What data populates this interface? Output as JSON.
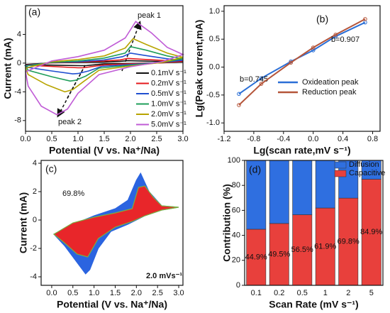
{
  "chart_data": [
    {
      "type": "line",
      "panel_label": "(a)",
      "x_label": "Potential (V vs. Na⁺/Na)",
      "y_label": "Current (mA)",
      "xlim": [
        0,
        3
      ],
      "ylim": [
        -9.5,
        8
      ],
      "xticks": [
        {
          "value": 0,
          "label": "0.0"
        },
        {
          "value": 0.5,
          "label": "0.5"
        },
        {
          "value": 1,
          "label": "1.0"
        },
        {
          "value": 1.5,
          "label": "1.5"
        },
        {
          "value": 2,
          "label": "2.0"
        },
        {
          "value": 2.5,
          "label": "2.5"
        },
        {
          "value": 3,
          "label": "3.0"
        }
      ],
      "yticks": [
        -8,
        -4,
        0,
        4
      ],
      "annotations": [
        "peak 1",
        "peak 2"
      ],
      "series": [
        {
          "name": "0.1mV s⁻¹",
          "color": "#111111",
          "x": [
            0,
            0.5,
            1.0,
            1.5,
            1.8,
            1.95,
            2.2,
            2.7,
            3.0,
            2.6,
            2.0,
            1.5,
            1.3,
            1.15,
            1.05,
            0.6,
            0.05,
            0
          ],
          "y": [
            -0.2,
            0.05,
            0.1,
            0.15,
            0.25,
            0.35,
            0.3,
            0.2,
            0.15,
            0.05,
            -0.05,
            -0.1,
            -0.25,
            -0.35,
            -0.35,
            -0.3,
            -0.2,
            -0.2
          ]
        },
        {
          "name": "0.2mV s⁻¹",
          "color": "#e41a1c",
          "x": [
            0,
            0.5,
            1.0,
            1.5,
            1.8,
            1.95,
            2.2,
            2.7,
            3.0,
            2.6,
            2.0,
            1.5,
            1.25,
            1.1,
            1.0,
            0.6,
            0.05,
            0
          ],
          "y": [
            -0.3,
            0.05,
            0.15,
            0.3,
            0.45,
            0.65,
            0.55,
            0.35,
            0.25,
            0.05,
            -0.1,
            -0.25,
            -0.5,
            -0.65,
            -0.65,
            -0.5,
            -0.3,
            -0.3
          ]
        },
        {
          "name": "0.5mV s⁻¹",
          "color": "#1f4fd0",
          "x": [
            0,
            0.5,
            1.0,
            1.5,
            1.85,
            2.0,
            2.25,
            2.7,
            3.0,
            2.6,
            2.0,
            1.45,
            1.2,
            1.0,
            0.9,
            0.5,
            0.05,
            0
          ],
          "y": [
            -0.35,
            0.1,
            0.2,
            0.45,
            0.9,
            1.4,
            1.1,
            0.6,
            0.4,
            0.1,
            -0.2,
            -0.45,
            -1.1,
            -1.45,
            -1.5,
            -1.1,
            -0.6,
            -0.35
          ]
        },
        {
          "name": "1.0mV s⁻¹",
          "color": "#1f9e5a",
          "x": [
            0,
            0.5,
            1.0,
            1.5,
            1.9,
            2.0,
            2.3,
            2.7,
            3.0,
            2.6,
            2.0,
            1.4,
            1.15,
            0.95,
            0.85,
            0.5,
            0.05,
            0
          ],
          "y": [
            -0.4,
            0.1,
            0.3,
            0.7,
            1.4,
            2.3,
            1.8,
            1.0,
            0.6,
            0.1,
            -0.3,
            -0.7,
            -1.8,
            -2.4,
            -2.5,
            -1.9,
            -1.0,
            -0.4
          ]
        },
        {
          "name": "2.0mV s⁻¹",
          "color": "#b8a400",
          "x": [
            0,
            0.5,
            1.0,
            1.5,
            1.9,
            2.05,
            2.3,
            2.7,
            3.0,
            2.6,
            2.0,
            1.4,
            1.1,
            0.9,
            0.75,
            0.4,
            0.05,
            0
          ],
          "y": [
            -0.7,
            0.2,
            0.5,
            1.0,
            2.1,
            3.4,
            2.6,
            1.4,
            0.8,
            0.1,
            -0.4,
            -1.0,
            -2.6,
            -3.7,
            -4.0,
            -3.0,
            -1.6,
            -0.7
          ]
        },
        {
          "name": "5.0mV s⁻¹",
          "color": "#c05cd6",
          "x": [
            0,
            0.5,
            1.0,
            1.5,
            1.9,
            2.1,
            2.4,
            2.7,
            3.0,
            2.6,
            2.0,
            1.4,
            1.0,
            0.8,
            0.6,
            0.3,
            0.05,
            0
          ],
          "y": [
            -1.2,
            0.3,
            0.9,
            1.8,
            3.5,
            5.8,
            4.2,
            2.2,
            1.2,
            0.2,
            -0.5,
            -1.6,
            -4.2,
            -6.4,
            -7.2,
            -6.0,
            -3.2,
            -1.2
          ]
        }
      ]
    },
    {
      "type": "scatter",
      "panel_label": "(b)",
      "x_label": "Lg(scan rate,mV s⁻¹)",
      "y_label": "Lg(Peak current,mA)",
      "xlim": [
        -1.2,
        0.9
      ],
      "ylim": [
        -1.15,
        1.1
      ],
      "xticks": [
        {
          "value": -1.2,
          "label": "-1.2"
        },
        {
          "value": -0.8,
          "label": "-0.8"
        },
        {
          "value": -0.4,
          "label": "-0.4"
        },
        {
          "value": 0,
          "label": "0.0"
        },
        {
          "value": 0.4,
          "label": "0.4"
        },
        {
          "value": 0.8,
          "label": "0.8"
        }
      ],
      "yticks": [
        {
          "value": -1,
          "label": "-1.0"
        },
        {
          "value": -0.5,
          "label": "-0.5"
        },
        {
          "value": 0,
          "label": "0.0"
        },
        0.5,
        {
          "value": 1,
          "label": "1.0"
        }
      ],
      "annotations": [
        "b=0.745",
        "b=0.907"
      ],
      "series": [
        {
          "name": "Oxideation peak",
          "color": "#2b6fd6",
          "x": [
            -1.0,
            -0.699,
            -0.301,
            0,
            0.301,
            0.699
          ],
          "y": [
            -0.48,
            -0.2,
            0.1,
            0.3,
            0.55,
            0.8
          ]
        },
        {
          "name": "Reduction  peak",
          "color": "#b5553a",
          "x": [
            -1.0,
            -0.699,
            -0.301,
            0,
            0.301,
            0.699
          ],
          "y": [
            -0.68,
            -0.3,
            0.08,
            0.35,
            0.58,
            0.86
          ]
        }
      ]
    },
    {
      "type": "area",
      "panel_label": "(c)",
      "x_label": "Potential (V vs. Na⁺/Na)",
      "y_label": "Current (mA)",
      "xlim": [
        -0.25,
        3.1
      ],
      "ylim": [
        -4.6,
        4.2
      ],
      "xticks": [
        {
          "value": 0,
          "label": "0.0"
        },
        {
          "value": 0.5,
          "label": "0.5"
        },
        {
          "value": 1,
          "label": "1.0"
        },
        {
          "value": 1.5,
          "label": "1.5"
        },
        {
          "value": 2,
          "label": "2.0"
        },
        {
          "value": 2.5,
          "label": "2.5"
        },
        {
          "value": 3,
          "label": "3.0"
        }
      ],
      "yticks": [
        -4,
        -2,
        0,
        2,
        4
      ],
      "annotations": [
        "69.8%",
        "2.0 mVs⁻¹"
      ],
      "series": [
        {
          "color": "#2b64e0",
          "x": [
            0.05,
            0.5,
            1.0,
            1.5,
            1.8,
            2.0,
            2.1,
            2.3,
            2.6,
            3.0,
            2.6,
            2.2,
            1.8,
            1.4,
            1.1,
            0.9,
            0.8,
            0.6,
            0.3,
            0.05
          ],
          "y": [
            -1.0,
            -0.3,
            0.3,
            0.8,
            1.4,
            2.8,
            3.3,
            2.0,
            1.0,
            0.9,
            0.7,
            0.3,
            -0.3,
            -0.8,
            -2.0,
            -3.5,
            -3.8,
            -3.0,
            -1.8,
            -1.0
          ]
        },
        {
          "color": "#e8262a",
          "x": [
            0.05,
            0.5,
            1.0,
            1.5,
            1.9,
            2.05,
            2.2,
            2.4,
            2.6,
            3.0,
            2.6,
            2.2,
            1.9,
            1.5,
            1.1,
            0.85,
            0.6,
            0.3,
            0.05
          ],
          "y": [
            -1.0,
            -0.2,
            0.2,
            0.5,
            0.8,
            2.3,
            2.4,
            1.6,
            1.0,
            0.9,
            0.7,
            0.3,
            -0.1,
            -0.5,
            -1.3,
            -2.6,
            -2.4,
            -1.6,
            -1.0
          ]
        }
      ]
    },
    {
      "type": "bar",
      "panel_label": "(d)",
      "x_label": "Scan Rate (mV s⁻¹)",
      "y_label": "Contribution (%)",
      "categories": [
        "0.1",
        "0.2",
        "0.5",
        "1",
        "2",
        "5"
      ],
      "ylim": [
        0,
        100
      ],
      "yticks": [
        0,
        20,
        40,
        60,
        80,
        100
      ],
      "series": [
        {
          "name": "Capacitive",
          "color": "#e8403c",
          "values": [
            44.9,
            49.5,
            56.5,
            61.9,
            69.8,
            84.9
          ],
          "value_labels": [
            "44.9%",
            "49.5%",
            "56.5%",
            "61.9%",
            "69.8%",
            "84.9%"
          ]
        },
        {
          "name": "Diffusion",
          "color": "#2f6fe0",
          "values": [
            55.1,
            50.5,
            43.5,
            38.1,
            30.2,
            15.1
          ]
        }
      ]
    }
  ]
}
